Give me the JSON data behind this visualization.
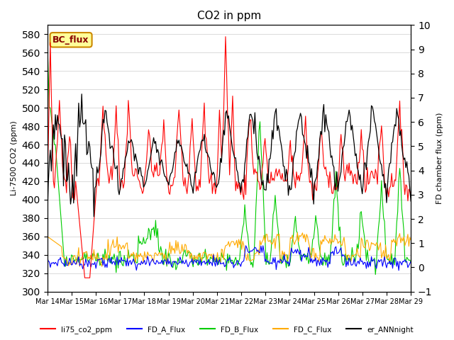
{
  "title": "CO2 in ppm",
  "ylabel_left": "Li-7500 CO2 (ppm)",
  "ylabel_right": "FD chamber flux (ppm)",
  "ylim_left": [
    300,
    590
  ],
  "ylim_right": [
    -1.0,
    10.0
  ],
  "yticks_left": [
    300,
    320,
    340,
    360,
    380,
    400,
    420,
    440,
    460,
    480,
    500,
    520,
    540,
    560,
    580
  ],
  "yticks_right": [
    -1.0,
    0.0,
    1.0,
    2.0,
    3.0,
    4.0,
    5.0,
    6.0,
    7.0,
    8.0,
    9.0,
    10.0
  ],
  "xticklabels": [
    "Mar 14",
    "Mar 15",
    "Mar 16",
    "Mar 17",
    "Mar 18",
    "Mar 19",
    "Mar 20",
    "Mar 21",
    "Mar 22",
    "Mar 23",
    "Mar 24",
    "Mar 25",
    "Mar 26",
    "Mar 27",
    "Mar 28",
    "Mar 29"
  ],
  "legend_labels": [
    "li75_co2_ppm",
    "FD_A_Flux",
    "FD_B_Flux",
    "FD_C_Flux",
    "er_ANNnight"
  ],
  "legend_colors": [
    "#ff0000",
    "#0000ff",
    "#00cc00",
    "#ffaa00",
    "#000000"
  ],
  "annotation_text": "BC_flux",
  "annotation_bg": "#ffff99",
  "annotation_border": "#cc8800",
  "grid_color": "#cccccc",
  "background_color": "#ffffff"
}
